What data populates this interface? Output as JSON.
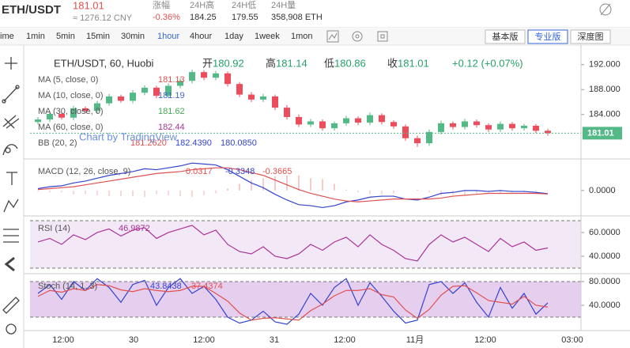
{
  "header": {
    "symbol": "ETH/USDT",
    "price": "181.01",
    "cny": "≈ 1276.12 CNY",
    "stats": [
      {
        "label": "涨幅",
        "value": "-0.36%"
      },
      {
        "label": "24H高",
        "value": "184.25"
      },
      {
        "label": "24H低",
        "value": "179.55"
      },
      {
        "label": "24H量",
        "value": "358,908 ETH"
      }
    ]
  },
  "toolbar": {
    "intervals": [
      "ime",
      "1min",
      "5min",
      "15min",
      "30min",
      "1hour",
      "4hour",
      "1day",
      "1week",
      "1mon"
    ],
    "active": 5,
    "buttons": [
      "基本版",
      "专业版",
      "深度图"
    ],
    "active_button": 1
  },
  "time_axis": [
    "12:00",
    "30",
    "12:00",
    "31",
    "12:00",
    "11月",
    "12:00",
    "03:00"
  ],
  "chart_data": [
    {
      "type": "candlestick",
      "title": "ETH/USDT, 60, Huobi",
      "ohlc": [
        {
          "label": "开",
          "value": "180.92"
        },
        {
          "label": "高",
          "value": "181.14"
        },
        {
          "label": "低",
          "value": "180.86"
        },
        {
          "label": "收",
          "value": "181.01"
        }
      ],
      "change": "+0.12 (+0.07%)",
      "indicators": [
        {
          "name": "MA (5, close, 0)",
          "values": [
            "181.13"
          ],
          "color": "#e05050"
        },
        {
          "name": "MA (10, close, 0)",
          "values": [
            "181.19"
          ],
          "color": "#4466cc"
        },
        {
          "name": "MA (30, close, 0)",
          "values": [
            "181.62"
          ],
          "color": "#44aa55"
        },
        {
          "name": "MA (60, close, 0)",
          "values": [
            "182.44"
          ],
          "color": "#aa3399"
        },
        {
          "name": "BB (20, 2)",
          "values": [
            "181.2620",
            "182.4390",
            "180.0850"
          ],
          "color": "#aa3399"
        }
      ],
      "watermark": "Chart by TradingView",
      "last": 181.01,
      "ylim": [
        177,
        194.5
      ],
      "yticks": [
        {
          "value": 192,
          "label": "192.000"
        },
        {
          "value": 188,
          "label": "188.000"
        },
        {
          "value": 184,
          "label": "184.000"
        }
      ],
      "up_color": "#53b987",
      "down_color": "#eb4d5c",
      "open": [
        182.8,
        183.2,
        184.1,
        183.5,
        185.0,
        184.6,
        185.8,
        186.9,
        186.2,
        187.5,
        188.3,
        187.0,
        188.6,
        189.4,
        190.8,
        189.9,
        190.6,
        188.9,
        187.2,
        186.4,
        186.9,
        185.1,
        183.6,
        182.4,
        182.9,
        181.8,
        182.6,
        183.4,
        182.7,
        183.9,
        182.8,
        182.1,
        180.2,
        179.4,
        181.2,
        182.6,
        182.0,
        182.9,
        182.3,
        181.6,
        182.5,
        181.8,
        182.2,
        181.4
      ],
      "high": [
        183.6,
        184.5,
        184.4,
        185.4,
        185.3,
        186.2,
        187.3,
        187.2,
        187.9,
        188.7,
        188.6,
        189.0,
        189.8,
        191.2,
        191.1,
        191.0,
        190.9,
        189.2,
        187.6,
        187.3,
        187.2,
        185.5,
        184.0,
        183.3,
        183.2,
        182.9,
        183.8,
        183.7,
        184.3,
        184.2,
        183.1,
        182.4,
        180.6,
        181.6,
        183.0,
        182.9,
        183.3,
        183.2,
        182.6,
        182.9,
        182.8,
        182.5,
        182.5,
        181.7
      ],
      "low": [
        182.4,
        182.8,
        183.2,
        183.1,
        184.2,
        184.2,
        185.4,
        185.9,
        185.8,
        187.1,
        186.6,
        186.6,
        188.2,
        189.0,
        189.5,
        189.5,
        188.5,
        186.8,
        186.0,
        186.0,
        184.7,
        183.2,
        182.0,
        182.0,
        181.4,
        181.4,
        182.2,
        182.3,
        182.3,
        182.4,
        181.7,
        179.8,
        178.8,
        179.0,
        180.8,
        181.6,
        181.6,
        181.9,
        181.2,
        181.2,
        181.4,
        181.4,
        181.0,
        180.6
      ],
      "close": [
        183.2,
        184.1,
        183.5,
        185.0,
        184.6,
        185.8,
        186.9,
        186.2,
        187.5,
        188.3,
        187.0,
        188.6,
        189.4,
        190.8,
        189.9,
        190.6,
        188.9,
        187.2,
        186.4,
        186.9,
        185.1,
        183.6,
        182.4,
        182.9,
        181.8,
        182.6,
        183.4,
        182.7,
        183.9,
        182.8,
        182.1,
        180.2,
        179.4,
        181.2,
        182.6,
        182.0,
        182.9,
        182.3,
        181.6,
        182.5,
        181.8,
        182.2,
        181.4,
        181.01
      ]
    },
    {
      "type": "line",
      "title": "MACD (12, 26, close, 9)",
      "readings": [
        "0.0317",
        "-0.3348",
        "-0.3665"
      ],
      "reading_colors": [
        "#e05050",
        "#3344cc",
        "#e05050"
      ],
      "ylim": [
        -2.6,
        3.25
      ],
      "yticks": [
        {
          "value": 0,
          "label": "0.0000"
        }
      ],
      "series": [
        {
          "color": "#3344cc",
          "values": [
            0.2,
            0.4,
            0.5,
            0.8,
            1.0,
            1.3,
            1.6,
            1.8,
            2.0,
            2.3,
            2.2,
            2.4,
            2.6,
            2.9,
            2.8,
            2.7,
            2.2,
            1.5,
            0.8,
            0.3,
            -0.4,
            -1.0,
            -1.5,
            -1.6,
            -1.8,
            -1.6,
            -1.2,
            -1.0,
            -0.7,
            -0.6,
            -0.6,
            -0.9,
            -1.0,
            -0.7,
            -0.3,
            -0.2,
            0.0,
            0.0,
            -0.1,
            0.0,
            -0.1,
            -0.1,
            -0.2,
            -0.33
          ]
        },
        {
          "color": "#e05050",
          "values": [
            0.1,
            0.2,
            0.3,
            0.4,
            0.6,
            0.8,
            1.0,
            1.2,
            1.4,
            1.6,
            1.8,
            1.9,
            2.0,
            2.2,
            2.3,
            2.4,
            2.4,
            2.2,
            1.9,
            1.6,
            1.1,
            0.6,
            0.1,
            -0.3,
            -0.6,
            -0.9,
            -1.1,
            -1.2,
            -1.1,
            -1.0,
            -0.9,
            -0.9,
            -0.9,
            -0.9,
            -0.8,
            -0.6,
            -0.5,
            -0.4,
            -0.3,
            -0.3,
            -0.3,
            -0.3,
            -0.3,
            -0.37
          ]
        }
      ]
    },
    {
      "type": "line",
      "title": "RSI (14)",
      "readings": [
        "46.9872"
      ],
      "reading_colors": [
        "#aa3399"
      ],
      "ylim": [
        26,
        73.3
      ],
      "yticks": [
        {
          "value": 60,
          "label": "60.0000"
        },
        {
          "value": 40,
          "label": "40.0000"
        }
      ],
      "bands": [
        30,
        70
      ],
      "band_color": "#f3e9f6",
      "series": [
        {
          "color": "#aa3399",
          "values": [
            52,
            55,
            50,
            58,
            54,
            60,
            63,
            57,
            62,
            64,
            55,
            60,
            63,
            66,
            58,
            62,
            50,
            44,
            42,
            48,
            40,
            38,
            42,
            50,
            45,
            52,
            56,
            48,
            58,
            50,
            45,
            38,
            36,
            50,
            58,
            52,
            56,
            50,
            44,
            55,
            48,
            52,
            45,
            47
          ]
        }
      ]
    },
    {
      "type": "line",
      "title": "Stoch (14, 1, 3)",
      "readings": [
        "43.8438",
        "37.4374"
      ],
      "reading_colors": [
        "#3344cc",
        "#e05050"
      ],
      "ylim": [
        -2.7,
        92
      ],
      "yticks": [
        {
          "value": 80,
          "label": "80.0000"
        },
        {
          "value": 40,
          "label": "40.0000"
        }
      ],
      "bands": [
        20,
        80
      ],
      "band_color": "#e6cfee",
      "series": [
        {
          "color": "#3344cc",
          "values": [
            60,
            75,
            50,
            80,
            65,
            85,
            70,
            45,
            75,
            82,
            40,
            70,
            85,
            60,
            72,
            50,
            20,
            10,
            15,
            30,
            12,
            8,
            25,
            60,
            40,
            70,
            85,
            40,
            78,
            55,
            30,
            10,
            15,
            75,
            80,
            60,
            78,
            45,
            20,
            70,
            35,
            60,
            25,
            44
          ]
        },
        {
          "color": "#e05050",
          "values": [
            55,
            65,
            62,
            68,
            65,
            75,
            73,
            66,
            63,
            68,
            65,
            63,
            65,
            72,
            72,
            60,
            47,
            27,
            15,
            18,
            19,
            17,
            15,
            31,
            42,
            56,
            65,
            65,
            68,
            58,
            54,
            32,
            18,
            33,
            57,
            72,
            73,
            61,
            48,
            45,
            42,
            55,
            40,
            37
          ]
        }
      ]
    }
  ]
}
